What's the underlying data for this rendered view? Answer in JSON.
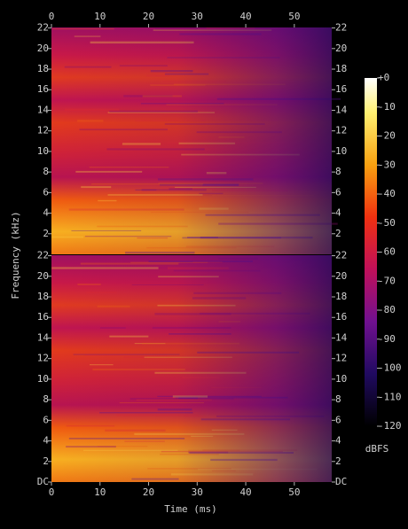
{
  "chart_data": [
    {
      "type": "heatmap",
      "ylabel": "Frequency (kHz)",
      "xlim": [
        0,
        57.7
      ],
      "xticks": [
        0,
        10,
        20,
        30,
        40,
        50
      ],
      "ylim": [
        0,
        22.05
      ],
      "yticks": [
        2,
        4,
        6,
        8,
        10,
        12,
        14,
        16,
        18,
        20,
        22
      ]
    },
    {
      "type": "heatmap",
      "xlabel": "Time (ms)",
      "xlim": [
        0,
        57.7
      ],
      "xticks": [
        0,
        10,
        20,
        30,
        40,
        50
      ],
      "ylim": [
        0,
        22.05
      ],
      "yticks": [
        {
          "value": 0,
          "label": "DC"
        },
        2,
        4,
        6,
        8,
        10,
        12,
        14,
        16,
        18,
        20,
        22
      ]
    }
  ],
  "colorbar": {
    "label": "dBFS",
    "lim": [
      -120,
      0
    ],
    "ticks": [
      {
        "value": 0,
        "label": "+0"
      },
      -10,
      -20,
      -30,
      -40,
      -50,
      -60,
      -70,
      -80,
      -90,
      -100,
      -110,
      -120
    ]
  }
}
